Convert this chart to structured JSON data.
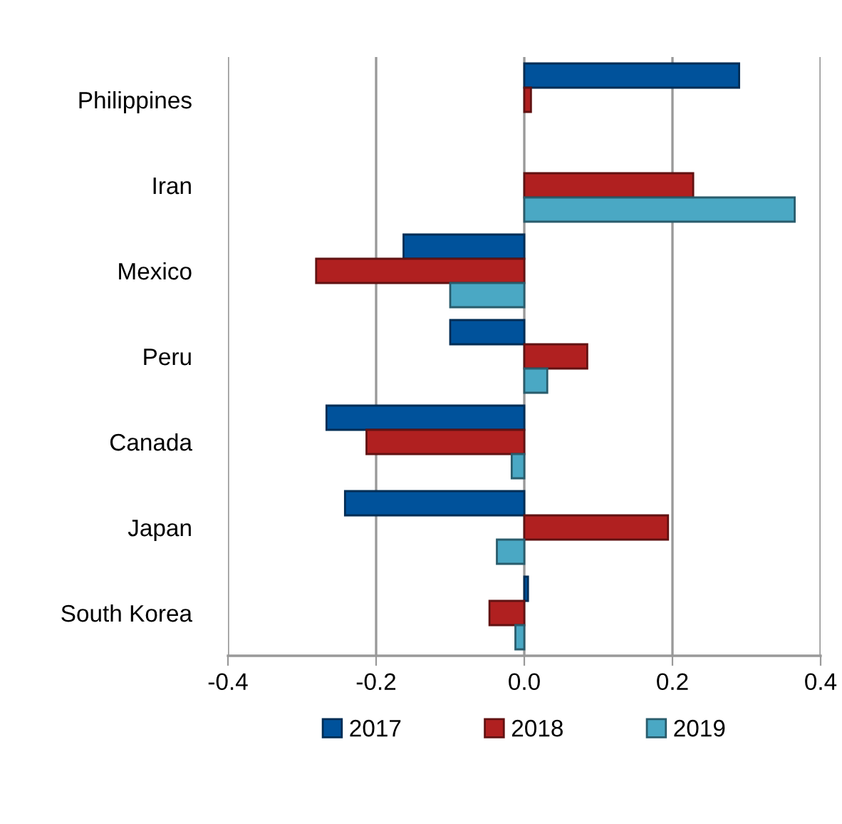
{
  "chart_data": {
    "type": "bar",
    "orientation": "horizontal",
    "categories": [
      "Philippines",
      "Iran",
      "Mexico",
      "Peru",
      "Canada",
      "Japan",
      "South Korea"
    ],
    "series": [
      {
        "name": "2017",
        "color": "#00529b",
        "values": [
          0.29,
          null,
          -0.163,
          -0.1,
          -0.267,
          -0.242,
          0.005
        ]
      },
      {
        "name": "2018",
        "color": "#b02020",
        "values": [
          0.009,
          0.228,
          -0.281,
          0.085,
          -0.213,
          0.194,
          -0.047
        ]
      },
      {
        "name": "2019",
        "color": "#4aa8c4",
        "values": [
          null,
          0.365,
          -0.1,
          0.031,
          -0.017,
          -0.037,
          -0.012
        ]
      }
    ],
    "xlim": [
      -0.4,
      0.4
    ],
    "xticks": [
      {
        "value": -0.4,
        "label": "-0.4"
      },
      {
        "value": -0.2,
        "label": "-0.2"
      },
      {
        "value": 0,
        "label": "0.0"
      },
      {
        "value": 0.2,
        "label": "0.2"
      },
      {
        "value": 0.4,
        "label": "0.4"
      }
    ],
    "grid": "x",
    "legend": "bottom"
  }
}
